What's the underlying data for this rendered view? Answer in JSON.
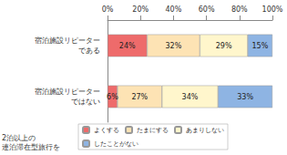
{
  "chart_data": {
    "type": "bar",
    "orientation": "horizontal",
    "stacked": true,
    "categories": [
      "宿泊施設リピーター\nである",
      "宿泊施設リピーター\nではない"
    ],
    "series": [
      {
        "name": "よくする",
        "color": "#ee6b6b",
        "values": [
          24,
          6
        ],
        "value_labels": [
          "24%",
          "6%"
        ]
      },
      {
        "name": "たまにする",
        "color": "#fde3b4",
        "values": [
          32,
          27
        ],
        "value_labels": [
          "32%",
          "27%"
        ]
      },
      {
        "name": "あまりしない",
        "color": "#fff6cc",
        "values": [
          29,
          34
        ],
        "value_labels": [
          "29%",
          "34%"
        ]
      },
      {
        "name": "したことがない",
        "color": "#8eb4e3",
        "values": [
          15,
          33
        ],
        "value_labels": [
          "15%",
          "33%"
        ]
      }
    ],
    "xlim": [
      0,
      100
    ],
    "xticks": [
      {
        "value": 0,
        "label": "0%"
      },
      {
        "value": 20,
        "label": "20%"
      },
      {
        "value": 40,
        "label": "40%"
      },
      {
        "value": 60,
        "label": "60%"
      },
      {
        "value": 80,
        "label": "80%"
      },
      {
        "value": 100,
        "label": "100%"
      }
    ],
    "annotations": [
      "2泊以上の\n連泊滞在型旅行を"
    ],
    "legend": "bottom",
    "data_labels": true,
    "grid": false
  }
}
